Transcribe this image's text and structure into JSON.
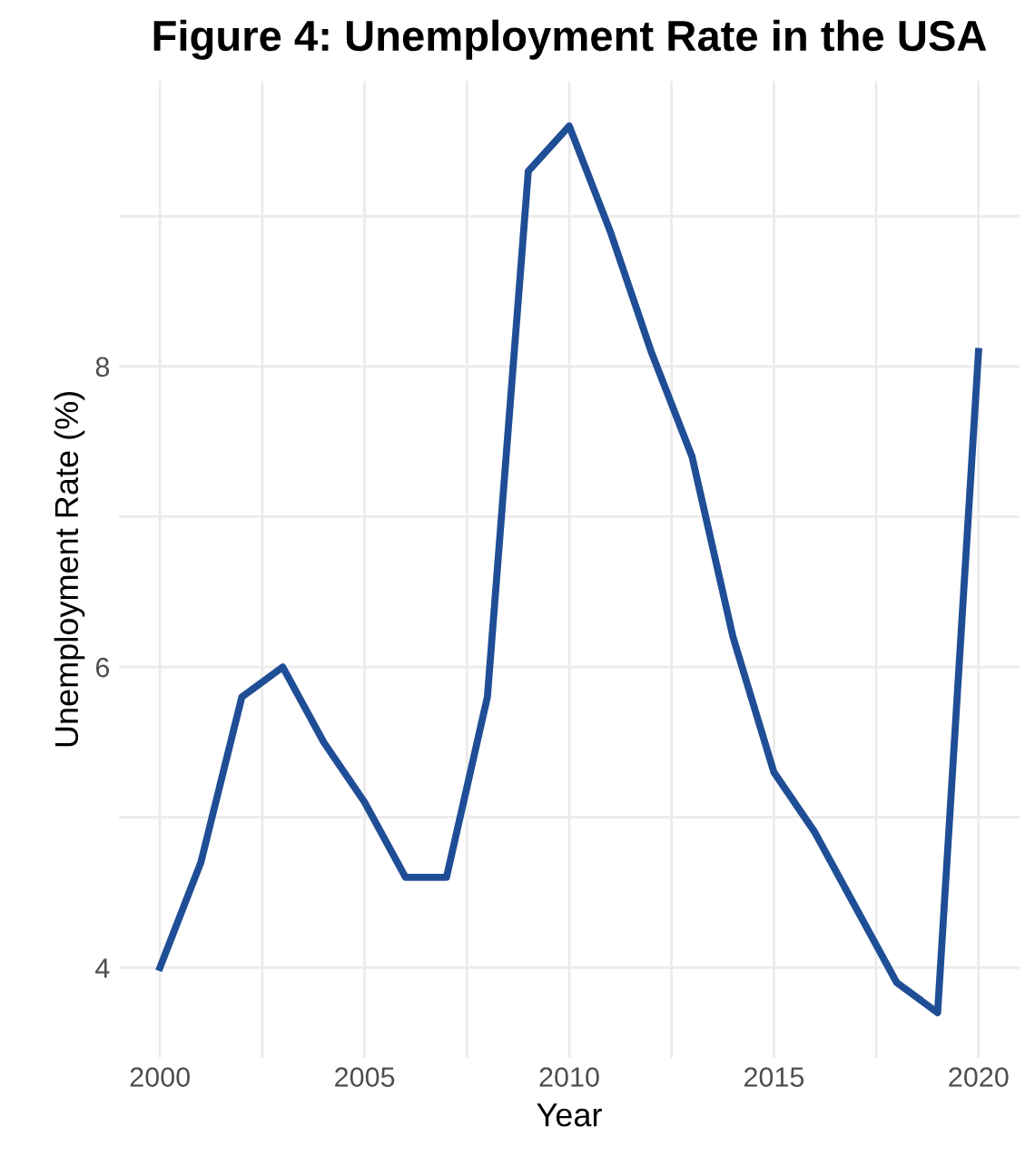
{
  "chart_data": {
    "type": "line",
    "title": "Figure 4: Unemployment Rate in the USA",
    "xlabel": "Year",
    "ylabel": "Unemployment Rate (%)",
    "x": [
      2000,
      2001,
      2002,
      2003,
      2004,
      2005,
      2006,
      2007,
      2008,
      2009,
      2010,
      2011,
      2012,
      2013,
      2014,
      2015,
      2016,
      2017,
      2018,
      2019,
      2020
    ],
    "series": [
      {
        "color": "#1f4e96",
        "values": [
          4.0,
          4.7,
          5.8,
          6.0,
          5.5,
          5.1,
          4.6,
          4.6,
          5.8,
          9.3,
          9.6,
          8.9,
          8.1,
          7.4,
          6.2,
          5.3,
          4.9,
          4.4,
          3.9,
          3.7,
          8.1
        ]
      }
    ],
    "xlim": [
      1999,
      2021
    ],
    "ylim": [
      3.4,
      9.9
    ],
    "xticks": [
      2000,
      {
        "value": 2002.5,
        "label": null
      },
      2005,
      {
        "value": 2007.5,
        "label": null
      },
      2010,
      {
        "value": 2012.5,
        "label": null
      },
      2015,
      {
        "value": 2017.5,
        "label": null
      },
      2020
    ],
    "yticks": [
      4,
      {
        "value": 5,
        "label": null
      },
      6,
      {
        "value": 7,
        "label": null
      },
      8,
      {
        "value": 9,
        "label": null
      }
    ],
    "grid": true,
    "line_style": "solid"
  }
}
